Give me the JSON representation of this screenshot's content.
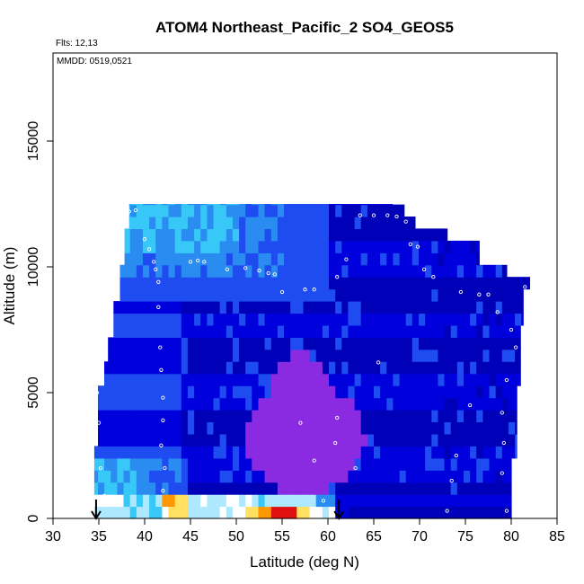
{
  "chart_data": {
    "type": "heatmap",
    "title": "ATOM4 Northeast_Pacific_2 SO4_GEOS5",
    "flights_label": "Flts: 12,13",
    "date_label": "MMDD: 0519,0521",
    "xlabel": "Latitude (deg N)",
    "ylabel": "Altitude (m)",
    "xlim": [
      30,
      85
    ],
    "ylim": [
      0,
      18500
    ],
    "x_ticks": [
      30,
      35,
      40,
      45,
      50,
      55,
      60,
      65,
      70,
      75,
      80,
      85
    ],
    "y_ticks": [
      0,
      5000,
      10000,
      15000
    ],
    "x_tick_labels": [
      "30",
      "35",
      "40",
      "45",
      "50",
      "55",
      "60",
      "65",
      "70",
      "75",
      "80",
      "85"
    ],
    "y_tick_labels": [
      "0",
      "5000",
      "10000",
      "15000"
    ],
    "grid": false,
    "legend": "none",
    "colormap": [
      "#0000b8",
      "#0000dd",
      "#1e4cf0",
      "#2a8cf0",
      "#38c8f8",
      "#aee8ff",
      "#ffffff",
      "#ffe060",
      "#ff9800",
      "#e01010",
      "#8a2be2"
    ],
    "profile_arrows_lat": [
      34.7,
      61.2
    ],
    "flight_track": [
      [
        38.3,
        12200
      ],
      [
        39.0,
        12250
      ],
      [
        40.0,
        11100
      ],
      [
        40.5,
        10700
      ],
      [
        41.0,
        10200
      ],
      [
        41.2,
        9900
      ],
      [
        41.5,
        9400
      ],
      [
        41.5,
        8400
      ],
      [
        41.7,
        6800
      ],
      [
        41.8,
        5900
      ],
      [
        42.0,
        4800
      ],
      [
        42.0,
        3900
      ],
      [
        41.8,
        2900
      ],
      [
        42.2,
        2000
      ],
      [
        42.0,
        1100
      ],
      [
        42.3,
        300
      ],
      [
        45.0,
        10200
      ],
      [
        45.8,
        10250
      ],
      [
        46.5,
        10200
      ],
      [
        49.0,
        9900
      ],
      [
        51.0,
        9950
      ],
      [
        52.5,
        9850
      ],
      [
        53.5,
        9750
      ],
      [
        54.2,
        9700
      ],
      [
        55.0,
        9000
      ],
      [
        57.5,
        9100
      ],
      [
        58.5,
        9100
      ],
      [
        61.0,
        9600
      ],
      [
        62.0,
        10300
      ],
      [
        63.5,
        12050
      ],
      [
        65.0,
        12050
      ],
      [
        66.5,
        12050
      ],
      [
        67.5,
        12000
      ],
      [
        68.5,
        11800
      ],
      [
        69.0,
        10900
      ],
      [
        69.8,
        10800
      ],
      [
        70.5,
        9900
      ],
      [
        71.5,
        9600
      ],
      [
        74.5,
        9000
      ],
      [
        76.5,
        8900
      ],
      [
        77.5,
        8900
      ],
      [
        78.5,
        8200
      ],
      [
        80.0,
        7500
      ],
      [
        81.5,
        9200
      ],
      [
        80.5,
        6800
      ],
      [
        79.5,
        5500
      ],
      [
        79.0,
        4200
      ],
      [
        79.2,
        3000
      ],
      [
        79.0,
        1800
      ],
      [
        79.5,
        300
      ],
      [
        75.5,
        4500
      ],
      [
        74.0,
        2500
      ],
      [
        73.5,
        1500
      ],
      [
        73.0,
        300
      ],
      [
        65.5,
        6200
      ],
      [
        60.8,
        3000
      ],
      [
        61.0,
        4000
      ],
      [
        63.0,
        2000
      ],
      [
        57.0,
        3800
      ],
      [
        58.5,
        2300
      ],
      [
        34.8,
        5000
      ],
      [
        35.0,
        3800
      ],
      [
        35.2,
        2000
      ],
      [
        35.6,
        900
      ],
      [
        59.5,
        700
      ]
    ],
    "sections": [
      {
        "lat_start": 38.2,
        "lat_end": 82.0,
        "alt_bottom": 0,
        "alt_top": 12500
      }
    ]
  }
}
